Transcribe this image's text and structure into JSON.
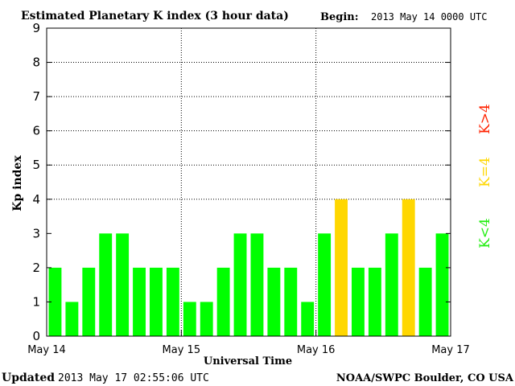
{
  "chart_data": {
    "type": "bar",
    "title": "Estimated Planetary K index (3 hour data)",
    "begin_label": "Begin:",
    "begin_value": "2013 May 14 0000 UTC",
    "xlabel": "Universal Time",
    "ylabel": "Kp index",
    "ylim": [
      0,
      9
    ],
    "yticks": [
      "0",
      "1",
      "2",
      "3",
      "4",
      "5",
      "6",
      "7",
      "8",
      "9"
    ],
    "x_tick_labels": [
      "May 14",
      "May 15",
      "May 16",
      "May 17"
    ],
    "grid": "dotted horizontal and day-boundary vertical lines",
    "values": [
      2,
      1,
      2,
      3,
      3,
      2,
      2,
      2,
      1,
      1,
      2,
      3,
      3,
      2,
      2,
      1,
      3,
      4,
      2,
      2,
      3,
      4,
      2,
      3
    ],
    "legend": [
      {
        "label": "K<4",
        "color": "#22ee11"
      },
      {
        "label": "K=4",
        "color": "#ffd700"
      },
      {
        "label": "K>4",
        "color": "#ff2200"
      }
    ],
    "colors": {
      "below4": "#00ff00",
      "equal4": "#ffd700",
      "above4": "#ff2200"
    }
  },
  "footer": {
    "updated_label": "Updated",
    "updated_value": "2013 May 17 02:55:06 UTC",
    "source": "NOAA/SWPC Boulder, CO USA"
  }
}
